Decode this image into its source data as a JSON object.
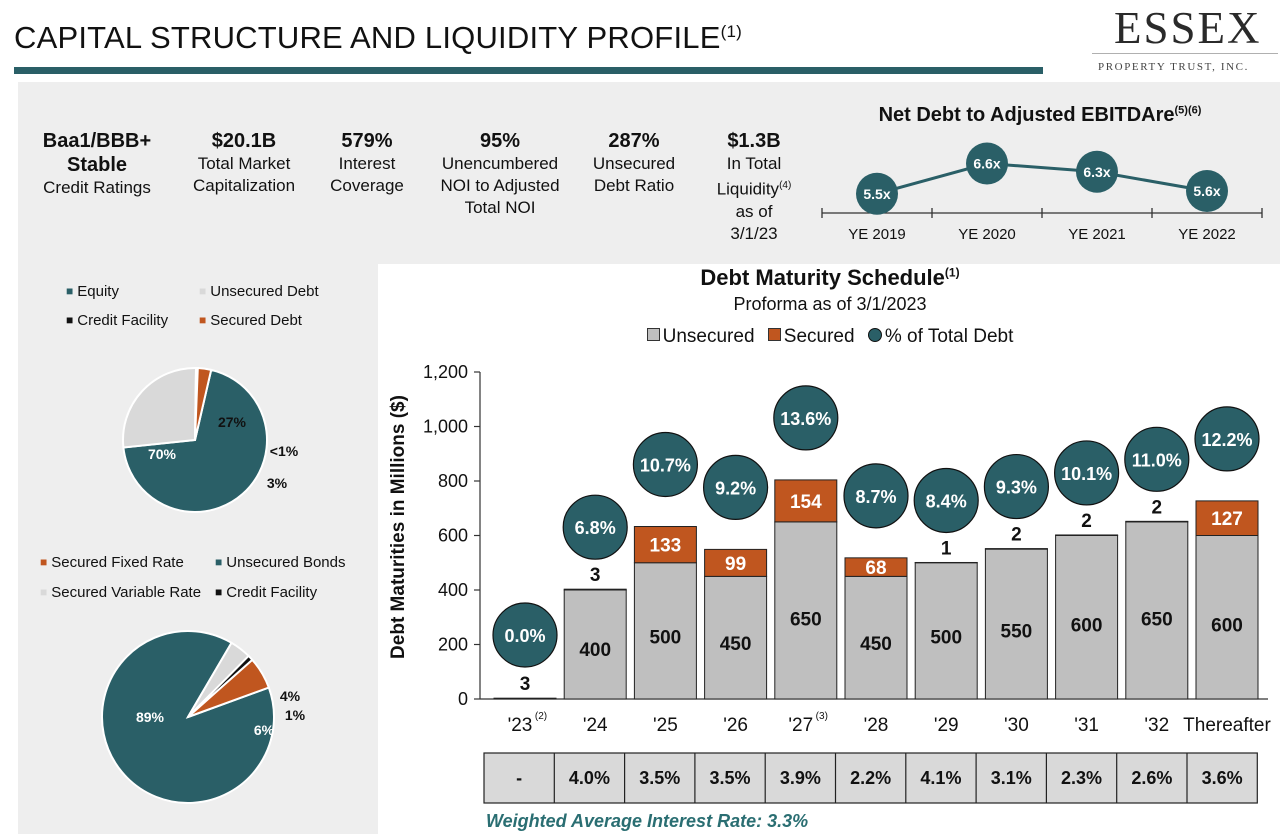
{
  "header": {
    "title": "CAPITAL STRUCTURE AND LIQUIDITY PROFILE",
    "title_footnote": "(1)",
    "logo_main": "ESSEX",
    "logo_sub": "PROPERTY TRUST, INC."
  },
  "metrics": [
    {
      "value": "Baa1/BBB+",
      "value2": "Stable",
      "label": "Credit Ratings"
    },
    {
      "value": "$20.1B",
      "label": "Total Market",
      "label2": "Capitalization"
    },
    {
      "value": "579%",
      "label": "Interest",
      "label2": "Coverage"
    },
    {
      "value": "95%",
      "label": "Unencumbered",
      "label2": "NOI to Adjusted",
      "label3": "Total NOI"
    },
    {
      "value": "287%",
      "label": "Unsecured",
      "label2": "Debt Ratio"
    },
    {
      "value": "$1.3B",
      "label": "In Total",
      "label2": "Liquidity",
      "label2_sup": "(4)",
      "label3": "as of",
      "label4": "3/1/23"
    }
  ],
  "colors": {
    "teal": "#2a5f67",
    "unsecured_gray": "#bfbfbf",
    "secured_orange": "#c0561f",
    "light_gray": "#d9d9d9",
    "black": "#111111",
    "panel_gray": "#eeeeee",
    "wair_teal": "#2a6e72"
  },
  "chart_data": [
    {
      "id": "net-debt-ebitda",
      "type": "line",
      "title": "Net Debt to Adjusted EBITDAre",
      "title_footnote": "(5)(6)",
      "categories": [
        "YE 2019",
        "YE 2020",
        "YE 2021",
        "YE 2022"
      ],
      "values": [
        5.5,
        6.6,
        6.3,
        5.6
      ],
      "labels": [
        "5.5x",
        "6.6x",
        "6.3x",
        "5.6x"
      ]
    },
    {
      "id": "capital-structure-pie",
      "type": "pie",
      "legend": [
        "Equity",
        "Unsecured Debt",
        "Credit Facility",
        "Secured Debt"
      ],
      "slices": [
        {
          "name": "Equity",
          "value": 70,
          "label": "70%"
        },
        {
          "name": "Unsecured Debt",
          "value": 27,
          "label": "27%"
        },
        {
          "name": "Credit Facility",
          "value": 0.4,
          "label": "<1%"
        },
        {
          "name": "Secured Debt",
          "value": 3,
          "label": "3%"
        }
      ]
    },
    {
      "id": "debt-type-pie",
      "type": "pie",
      "legend": [
        "Secured Fixed Rate",
        "Unsecured Bonds",
        "Secured Variable Rate",
        "Credit Facility"
      ],
      "slices": [
        {
          "name": "Unsecured Bonds",
          "value": 89,
          "label": "89%"
        },
        {
          "name": "Secured Variable Rate",
          "value": 4,
          "label": "4%"
        },
        {
          "name": "Credit Facility",
          "value": 1,
          "label": "1%"
        },
        {
          "name": "Secured Fixed Rate",
          "value": 6,
          "label": "6%"
        }
      ]
    },
    {
      "id": "debt-maturity-schedule",
      "type": "bar",
      "title": "Debt Maturity Schedule",
      "title_footnote": "(1)",
      "subtitle": "Proforma as of 3/1/2023",
      "legend": [
        "Unsecured",
        "Secured",
        "% of Total Debt"
      ],
      "ylabel": "Debt Maturities in Millions ($)",
      "ylim": [
        0,
        1200
      ],
      "yticks": [
        "0",
        "200",
        "400",
        "600",
        "800",
        "1,000",
        "1,200"
      ],
      "categories": [
        "'23",
        "'24",
        "'25",
        "'26",
        "'27",
        "'28",
        "'29",
        "'30",
        "'31",
        "'32",
        "Thereafter"
      ],
      "category_footnotes": [
        "(2)",
        "",
        "",
        "",
        "(3)",
        "",
        "",
        "",
        "",
        "",
        ""
      ],
      "series": [
        {
          "name": "Unsecured",
          "values": [
            3,
            400,
            500,
            450,
            650,
            450,
            500,
            550,
            600,
            650,
            600
          ],
          "labels": [
            "",
            "400",
            "500",
            "450",
            "650",
            "450",
            "500",
            "550",
            "600",
            "650",
            "600"
          ]
        },
        {
          "name": "Secured",
          "values": [
            0,
            3,
            133,
            99,
            154,
            68,
            1,
            2,
            2,
            2,
            127
          ],
          "labels": [
            "",
            "",
            "133",
            "99",
            "154",
            "68",
            "",
            "",
            "",
            "",
            "127"
          ]
        }
      ],
      "top_labels": [
        "3",
        "3",
        "",
        "",
        "",
        "",
        "1",
        "2",
        "2",
        "2",
        ""
      ],
      "pct_of_total": [
        "0.0%",
        "6.8%",
        "10.7%",
        "9.2%",
        "13.6%",
        "8.7%",
        "8.4%",
        "9.3%",
        "10.1%",
        "11.0%",
        "12.2%"
      ],
      "interest_rates": [
        "-",
        "4.0%",
        "3.5%",
        "3.5%",
        "3.9%",
        "2.2%",
        "4.1%",
        "3.1%",
        "2.3%",
        "2.6%",
        "3.6%"
      ]
    }
  ],
  "footer": {
    "weighted_avg": "Weighted Average Interest Rate: 3.3%"
  }
}
